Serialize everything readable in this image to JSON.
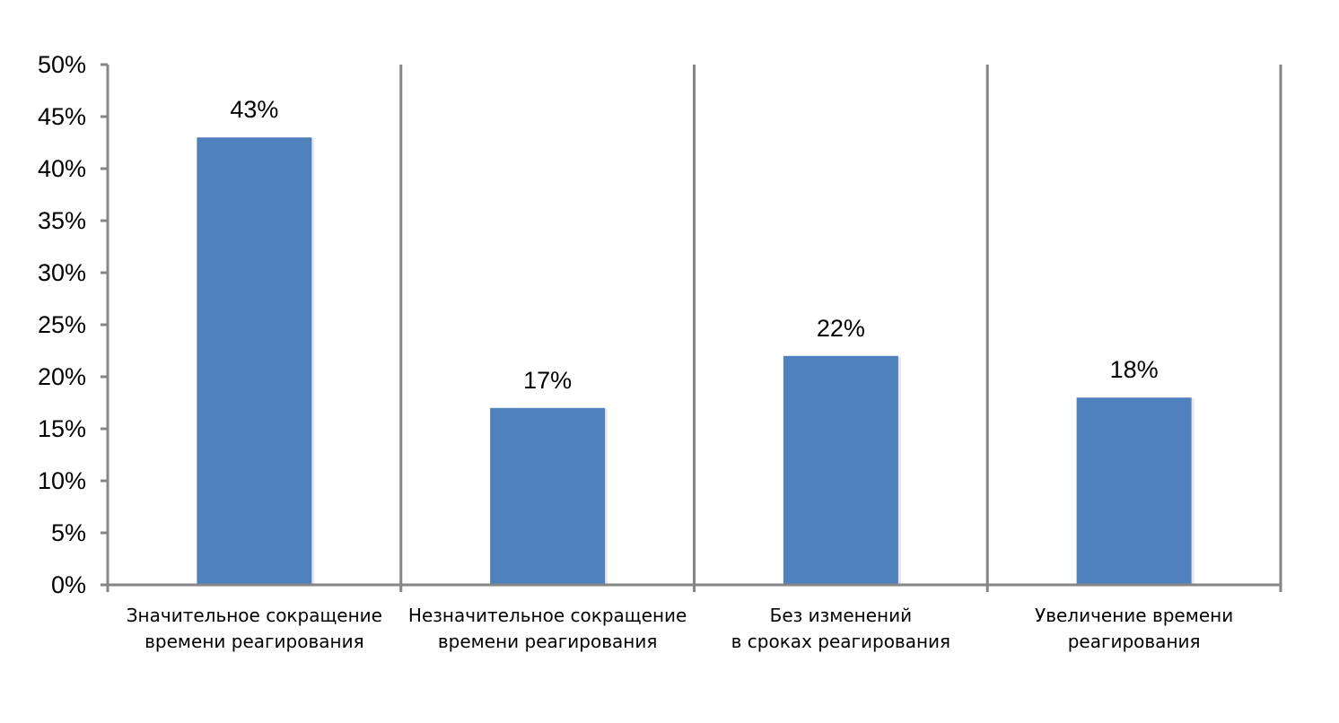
{
  "chart_data": {
    "type": "bar",
    "title": "",
    "xlabel": "",
    "ylabel": "",
    "categories": [
      [
        "Значительное сокращение",
        "времени реагирования"
      ],
      [
        "Незначительное сокращение",
        "времени реагирования"
      ],
      [
        "Без изменений",
        "в сроках реагирования"
      ],
      [
        "Увеличение времени",
        "реагирования"
      ]
    ],
    "values": [
      43,
      17,
      22,
      18
    ],
    "data_labels": [
      "43%",
      "17%",
      "22%",
      "18%"
    ],
    "ylim": [
      0,
      50
    ],
    "yticks": [
      0,
      5,
      10,
      15,
      20,
      25,
      30,
      35,
      40,
      45,
      50
    ],
    "ytick_labels": [
      "0%",
      "5%",
      "10%",
      "15%",
      "20%",
      "25%",
      "30%",
      "35%",
      "40%",
      "45%",
      "50%"
    ],
    "grid": false,
    "legend": "none",
    "colors": {
      "bar": "#4f81bd",
      "axis": "#868686"
    }
  }
}
